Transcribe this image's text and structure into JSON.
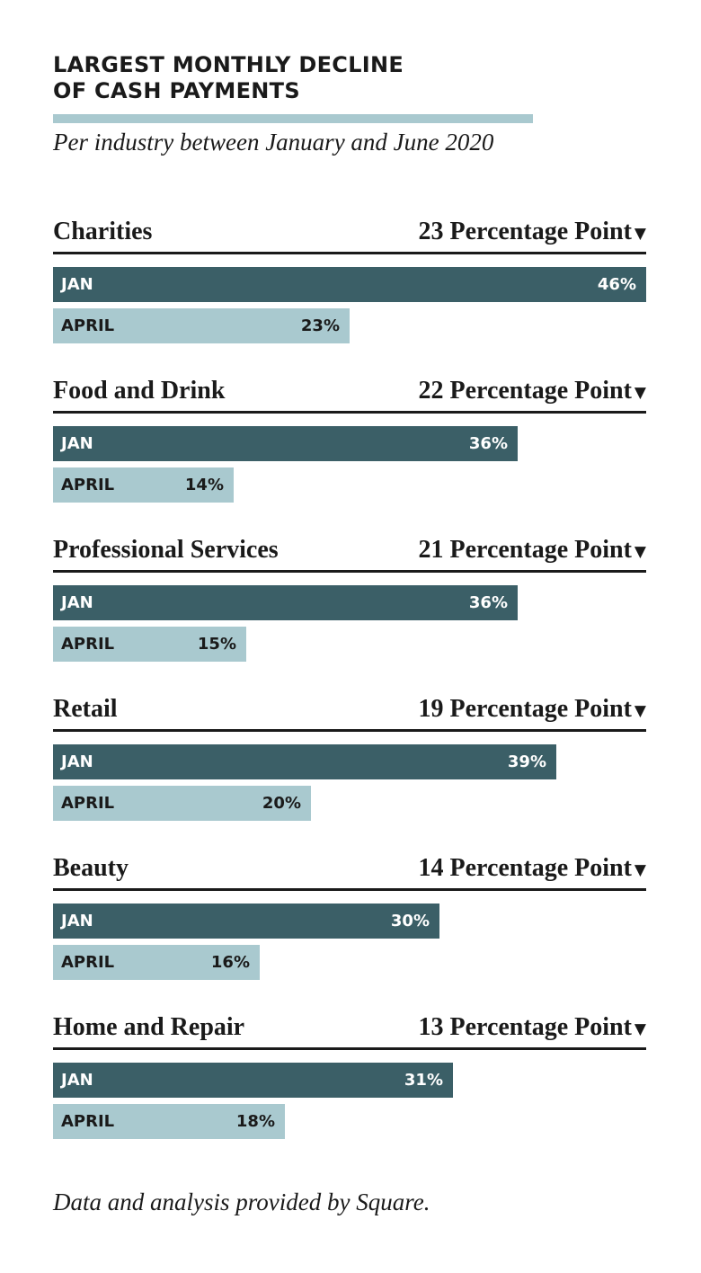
{
  "chart_data": {
    "type": "bar",
    "title": "LARGEST MONTHLY DECLINE OF CASH PAYMENTS",
    "title_lines": [
      "LARGEST MONTHLY DECLINE",
      "OF CASH PAYMENTS"
    ],
    "subtitle": "Per industry between January and June 2020",
    "footer": "Data and analysis provided by Square.",
    "series_labels": [
      "JAN",
      "APRIL"
    ],
    "xlim": [
      0,
      46
    ],
    "colors": {
      "jan": "#3b5f67",
      "april": "#a9c9cf",
      "title_rule": "#a9c9cf"
    },
    "industries": [
      {
        "name": "Charities",
        "change": "23 Percentage Point",
        "jan": 46,
        "april": 23,
        "jan_label": "46%",
        "april_label": "23%"
      },
      {
        "name": "Food and Drink",
        "change": "22 Percentage Point",
        "jan": 36,
        "april": 14,
        "jan_label": "36%",
        "april_label": "14%"
      },
      {
        "name": "Professional Services",
        "change": "21 Percentage Point",
        "jan": 36,
        "april": 15,
        "jan_label": "36%",
        "april_label": "15%"
      },
      {
        "name": "Retail",
        "change": "19 Percentage Point",
        "jan": 39,
        "april": 20,
        "jan_label": "39%",
        "april_label": "20%"
      },
      {
        "name": "Beauty",
        "change": "14 Percentage Point",
        "jan": 30,
        "april": 16,
        "jan_label": "30%",
        "april_label": "16%"
      },
      {
        "name": "Home and Repair",
        "change": "13 Percentage Point",
        "jan": 31,
        "april": 18,
        "jan_label": "31%",
        "april_label": "18%"
      }
    ]
  }
}
